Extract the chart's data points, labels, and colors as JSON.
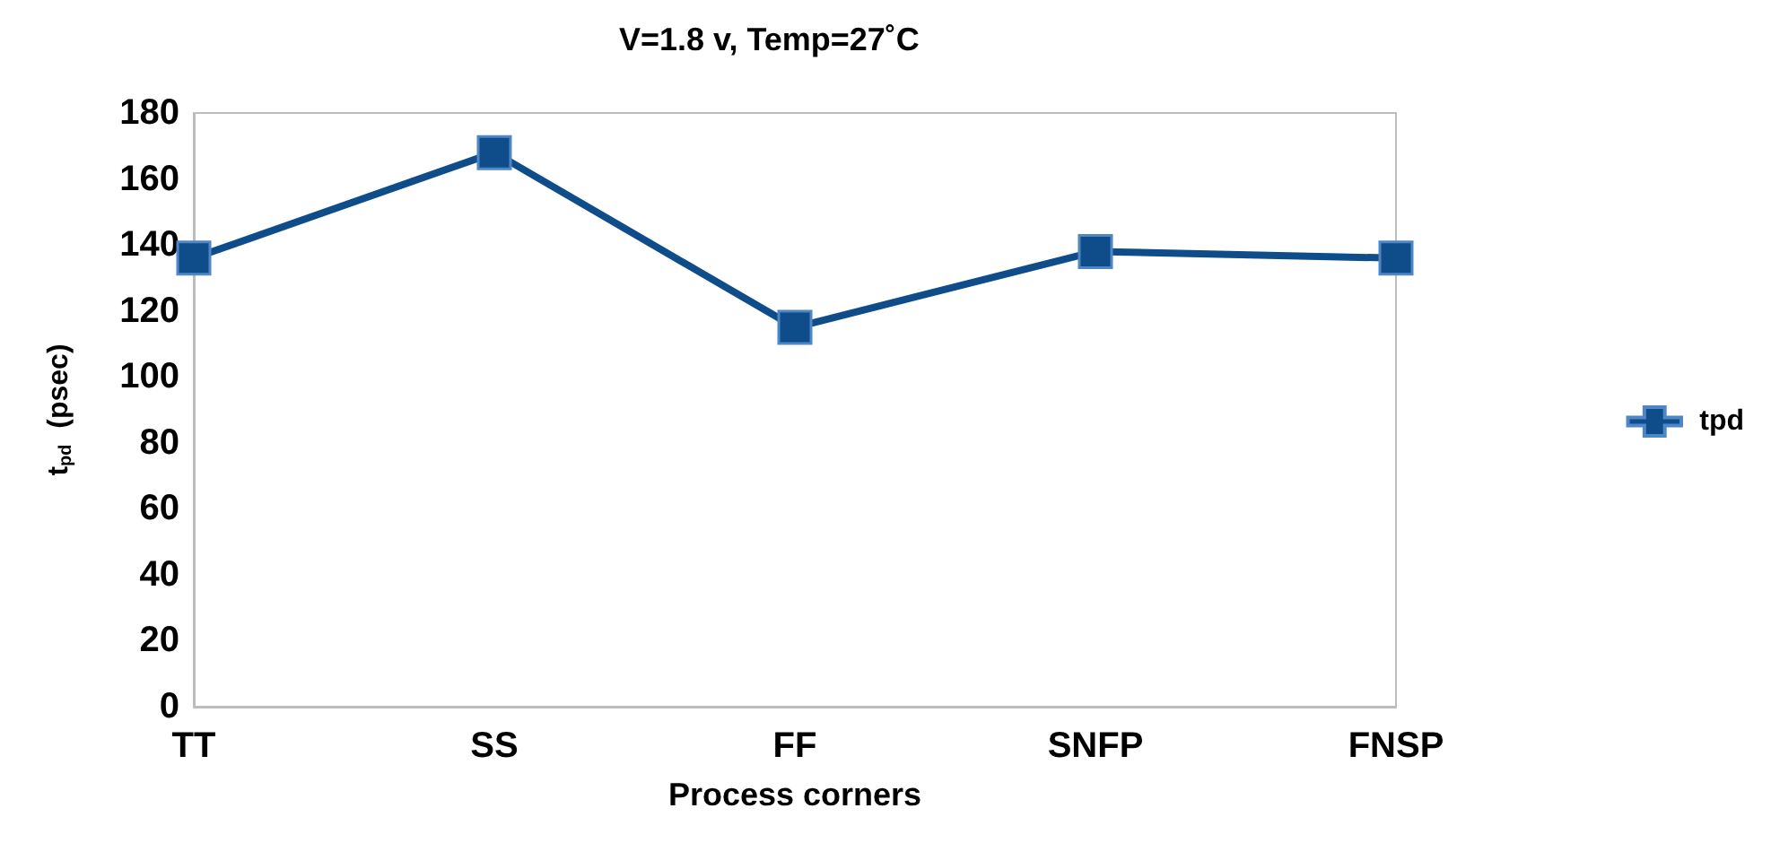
{
  "chart_data": {
    "type": "line",
    "title": "V=1.8 v, Temp=27˚C",
    "xlabel": "Process corners",
    "ylabel": "t$_{pd}$  (psec)",
    "categories": [
      "TT",
      "SS",
      "FF",
      "SNFP",
      "FNSP"
    ],
    "series": [
      {
        "name": "tpd",
        "color": "#0f4c8a",
        "values": [
          136,
          168,
          115,
          138,
          136
        ]
      }
    ],
    "ylim": [
      0,
      180
    ],
    "yticks": [
      0,
      20,
      40,
      60,
      80,
      100,
      120,
      140,
      160,
      180
    ],
    "grid": false,
    "legend": "right",
    "marker": "square",
    "line_style": "solid"
  }
}
